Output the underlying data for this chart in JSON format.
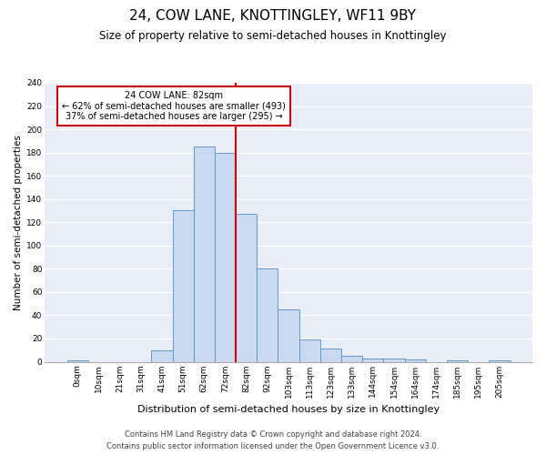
{
  "title": "24, COW LANE, KNOTTINGLEY, WF11 9BY",
  "subtitle": "Size of property relative to semi-detached houses in Knottingley",
  "xlabel": "Distribution of semi-detached houses by size in Knottingley",
  "ylabel": "Number of semi-detached properties",
  "bin_labels": [
    "0sqm",
    "10sqm",
    "21sqm",
    "31sqm",
    "41sqm",
    "51sqm",
    "62sqm",
    "72sqm",
    "82sqm",
    "92sqm",
    "103sqm",
    "113sqm",
    "123sqm",
    "133sqm",
    "144sqm",
    "154sqm",
    "164sqm",
    "174sqm",
    "185sqm",
    "195sqm",
    "205sqm"
  ],
  "bar_heights": [
    1,
    0,
    0,
    0,
    10,
    130,
    185,
    180,
    127,
    80,
    45,
    19,
    11,
    5,
    3,
    3,
    2,
    0,
    1,
    0,
    1
  ],
  "bar_color": "#c9d9f0",
  "bar_edge_color": "#6699cc",
  "background_color": "#e8eef8",
  "grid_color": "#ffffff",
  "vline_color": "#cc0000",
  "annotation_title": "24 COW LANE: 82sqm",
  "annotation_line1": "← 62% of semi-detached houses are smaller (493)",
  "annotation_line2": "37% of semi-detached houses are larger (295) →",
  "annotation_box_color": "#cc0000",
  "vline_index": 8,
  "footer1": "Contains HM Land Registry data © Crown copyright and database right 2024.",
  "footer2": "Contains public sector information licensed under the Open Government Licence v3.0.",
  "ylim": [
    0,
    240
  ],
  "yticks": [
    0,
    20,
    40,
    60,
    80,
    100,
    120,
    140,
    160,
    180,
    200,
    220,
    240
  ],
  "title_fontsize": 11,
  "subtitle_fontsize": 8.5,
  "xlabel_fontsize": 8,
  "ylabel_fontsize": 7.5,
  "tick_fontsize": 6.5,
  "footer_fontsize": 6
}
